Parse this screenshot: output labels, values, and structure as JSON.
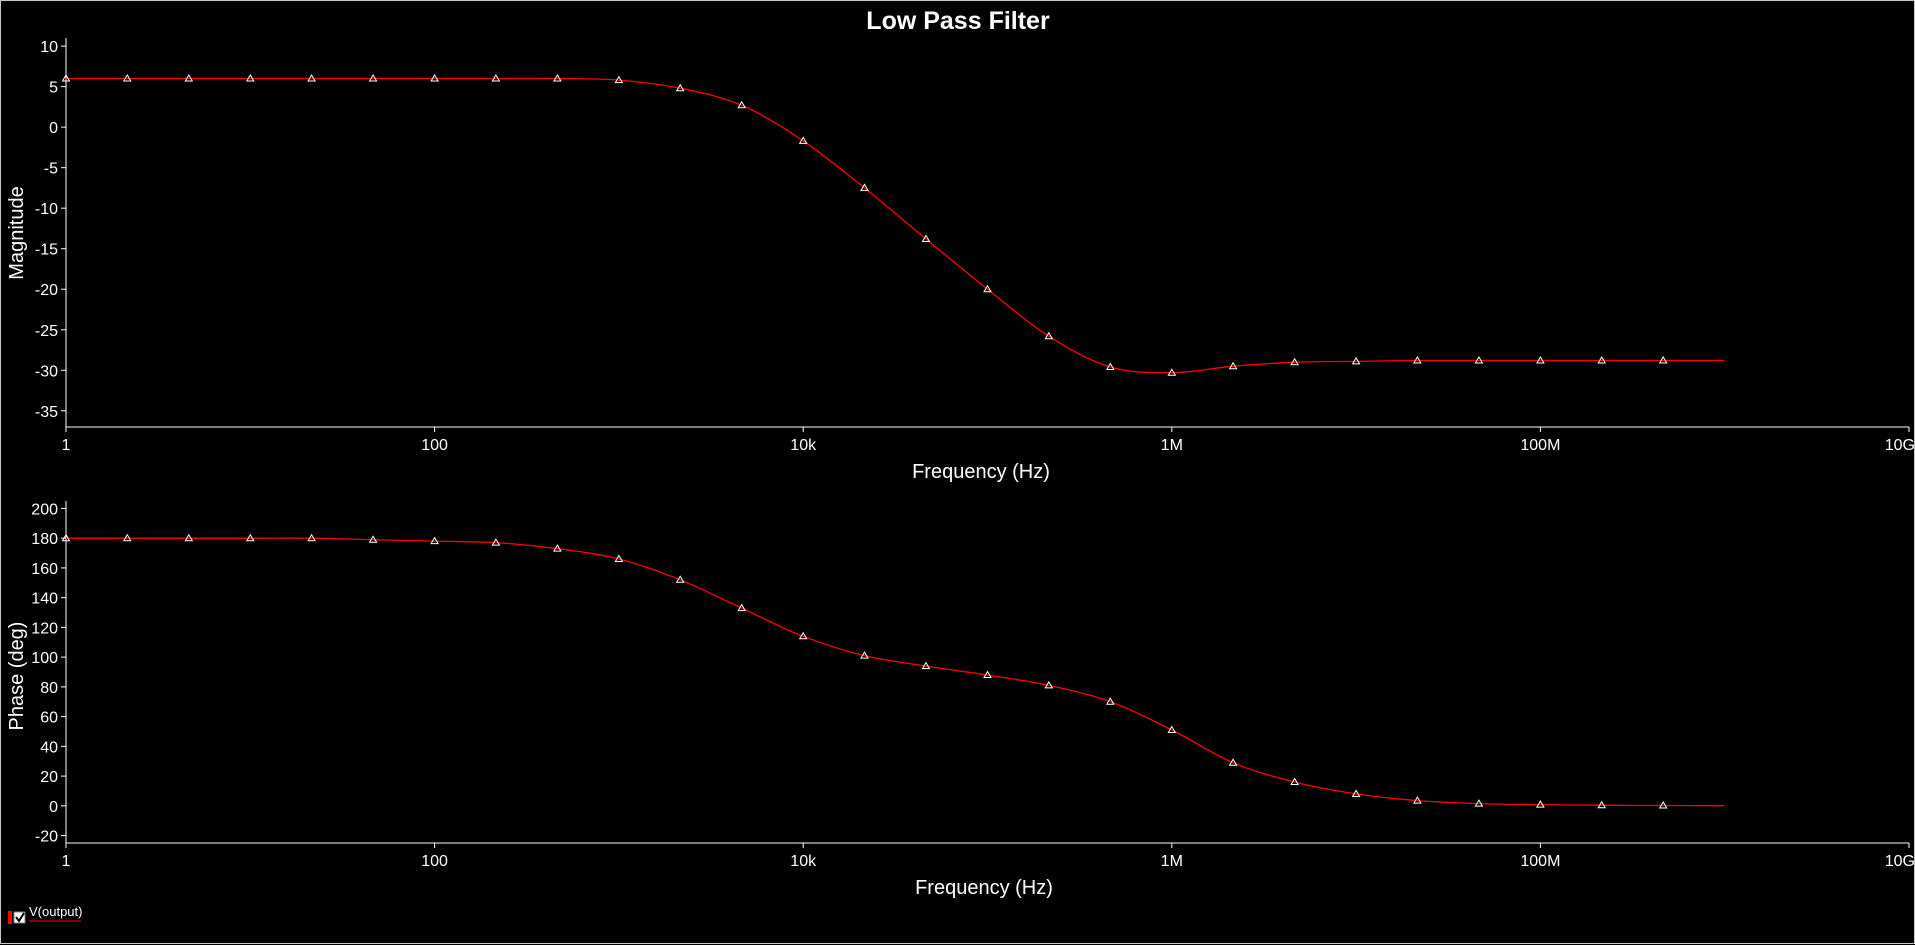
{
  "chart_data": [
    {
      "type": "line",
      "title": "Low Pass Filter",
      "xlabel": "Frequency (Hz)",
      "ylabel": "Magnitude",
      "xscale": "log",
      "xlim": [
        1,
        10000000000
      ],
      "ylim": [
        -37,
        11
      ],
      "x_ticks": [
        1,
        100,
        10000,
        1000000,
        100000000,
        10000000000
      ],
      "x_tick_labels": [
        "1",
        "100",
        "10k",
        "1M",
        "100M",
        "10G"
      ],
      "y_ticks": [
        10,
        5,
        0,
        -5,
        -10,
        -15,
        -20,
        -25,
        -30,
        -35
      ],
      "y_tick_labels": [
        "10",
        "5",
        "0",
        "-5",
        "-10",
        "-15",
        "-20",
        "-25",
        "-30",
        "-35"
      ],
      "grid": false,
      "series": [
        {
          "name": "V(output)",
          "color": "#ff0000",
          "marker_color": "#ffffff",
          "marker": "triangle",
          "x": [
            1,
            2.15,
            4.64,
            10,
            21.5,
            46.4,
            100,
            215,
            464,
            1000,
            2150,
            4640,
            10000,
            21500,
            46400,
            100000,
            215000,
            464000,
            1000000,
            2150000,
            4640000,
            10000000,
            21500000,
            46400000,
            100000000,
            215000000,
            464000000,
            1000000000
          ],
          "y": [
            6.0,
            6.0,
            6.0,
            6.0,
            6.0,
            6.0,
            6.0,
            6.0,
            6.0,
            5.8,
            4.8,
            2.7,
            -1.7,
            -7.5,
            -13.8,
            -20.0,
            -25.8,
            -29.6,
            -30.3,
            -29.5,
            -29.0,
            -28.9,
            -28.8,
            -28.8,
            -28.8,
            -28.8,
            -28.8,
            -28.8
          ]
        }
      ]
    },
    {
      "type": "line",
      "xlabel": "Frequency (Hz)",
      "ylabel": "Phase (deg)",
      "xscale": "log",
      "xlim": [
        1,
        10000000000
      ],
      "ylim": [
        -25,
        205
      ],
      "x_ticks": [
        1,
        100,
        10000,
        1000000,
        100000000,
        10000000000
      ],
      "x_tick_labels": [
        "1",
        "100",
        "10k",
        "1M",
        "100M",
        "10G"
      ],
      "y_ticks": [
        200,
        180,
        160,
        140,
        120,
        100,
        80,
        60,
        40,
        20,
        0,
        -20
      ],
      "y_tick_labels": [
        "200",
        "180",
        "160",
        "140",
        "120",
        "100",
        "80",
        "60",
        "40",
        "20",
        "0",
        "-20"
      ],
      "grid": false,
      "series": [
        {
          "name": "V(output)",
          "color": "#ff0000",
          "marker_color": "#ffffff",
          "marker": "triangle",
          "x": [
            1,
            2.15,
            4.64,
            10,
            21.5,
            46.4,
            100,
            215,
            464,
            1000,
            2150,
            4640,
            10000,
            21500,
            46400,
            100000,
            215000,
            464000,
            1000000,
            2150000,
            4640000,
            10000000,
            21500000,
            46400000,
            100000000,
            215000000,
            464000000,
            1000000000
          ],
          "y": [
            180,
            180,
            180,
            180,
            180,
            179,
            178,
            177,
            173,
            166,
            152,
            133,
            114,
            101,
            94,
            88,
            81,
            70,
            51,
            29,
            16,
            8,
            3.5,
            1.5,
            0.8,
            0.4,
            0.2,
            0.1
          ]
        }
      ]
    }
  ],
  "legend": {
    "entries": [
      {
        "label": "V(output)",
        "checked": true,
        "color": "#ff0000"
      }
    ],
    "placement": "bottom-left"
  }
}
